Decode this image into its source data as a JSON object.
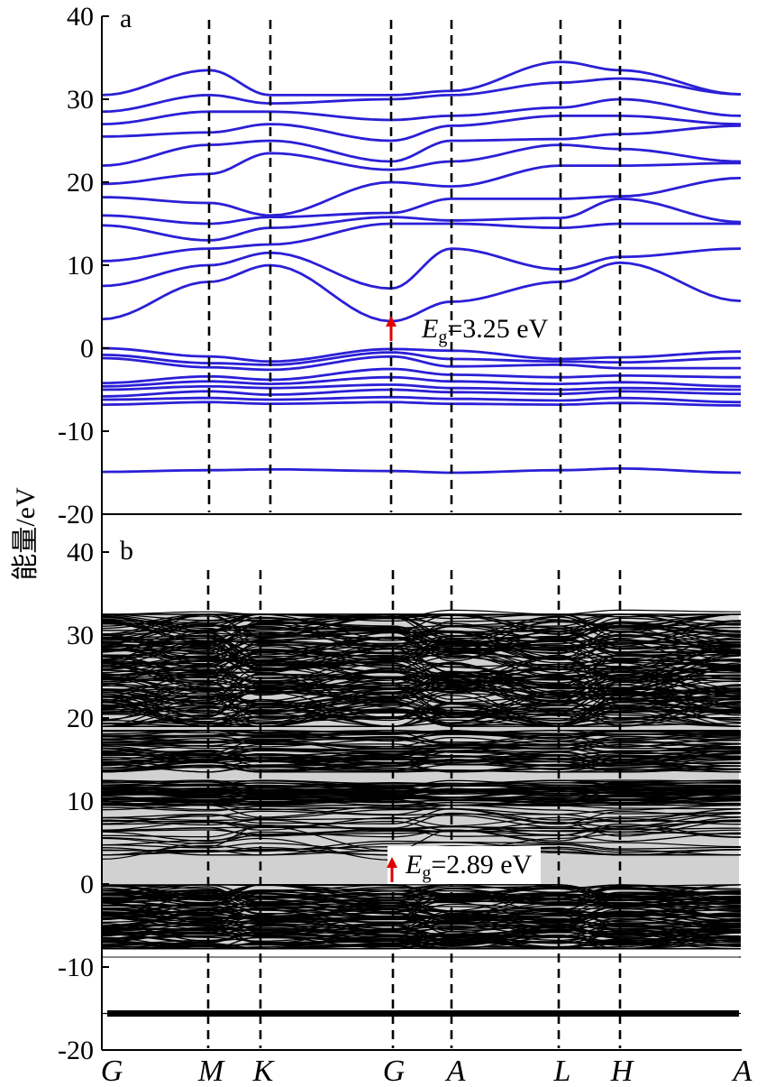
{
  "figure": {
    "ylabel": "能量/eV",
    "kpoints": [
      "G",
      "M",
      "K",
      "G",
      "A",
      "L",
      "H",
      "A"
    ]
  },
  "chart_data": [
    {
      "type": "line",
      "panel_label": "a",
      "ylim": [
        -20,
        40
      ],
      "yticks": [
        -20,
        -10,
        0,
        10,
        20,
        30,
        40
      ],
      "ytick_labels": [
        "-20",
        "-10",
        "0",
        "10",
        "20",
        "30",
        "40"
      ],
      "x_labels": [
        "G",
        "M",
        "K",
        "G",
        "A",
        "L",
        "H",
        "A"
      ],
      "line_color": "#2B1FD6",
      "band_gap_eV": 3.25,
      "annotation": {
        "E": "E",
        "sub": "g",
        "rest": "=3.25 eV"
      },
      "bands_sampled": [
        {
          "name": "",
          "values": [
            -14.9,
            -14.7,
            -14.6,
            -14.8,
            -15.0,
            -14.7,
            -14.5,
            -15.0
          ]
        },
        {
          "name": "",
          "values": [
            -6.8,
            -6.5,
            -6.7,
            -6.5,
            -6.7,
            -6.8,
            -6.6,
            -6.9
          ]
        },
        {
          "name": "",
          "values": [
            -6.2,
            -6.0,
            -6.2,
            -5.9,
            -6.1,
            -6.3,
            -6.0,
            -6.5
          ]
        },
        {
          "name": "",
          "values": [
            -5.8,
            -5.2,
            -5.6,
            -5.0,
            -5.3,
            -5.5,
            -5.2,
            -5.5
          ]
        },
        {
          "name": "",
          "values": [
            -5.0,
            -4.6,
            -4.8,
            -4.4,
            -4.8,
            -5.0,
            -4.8,
            -5.0
          ]
        },
        {
          "name": "",
          "values": [
            -4.6,
            -4.0,
            -4.3,
            -3.5,
            -4.0,
            -4.3,
            -4.1,
            -4.6
          ]
        },
        {
          "name": "",
          "values": [
            -4.2,
            -3.4,
            -3.8,
            -2.5,
            -3.2,
            -3.5,
            -3.3,
            -3.5
          ]
        },
        {
          "name": "",
          "values": [
            -1.2,
            -2.3,
            -2.6,
            -1.0,
            -2.2,
            -2.0,
            -2.4,
            -2.4
          ]
        },
        {
          "name": "",
          "values": [
            -0.8,
            -1.8,
            -2.0,
            -0.5,
            -1.3,
            -1.6,
            -1.7,
            -1.2
          ]
        },
        {
          "name": "",
          "values": [
            0.0,
            -1.0,
            -1.6,
            -0.1,
            -0.3,
            -1.3,
            -1.1,
            -0.4
          ]
        },
        {
          "name": "",
          "values": [
            3.5,
            8.0,
            10.0,
            3.25,
            5.6,
            8.0,
            10.3,
            5.7
          ]
        },
        {
          "name": "",
          "values": [
            7.5,
            10.0,
            11.5,
            7.2,
            12.0,
            9.5,
            11.0,
            12.0
          ]
        },
        {
          "name": "",
          "values": [
            10.5,
            12.0,
            12.5,
            15.0,
            15.0,
            14.5,
            15.0,
            15.0
          ]
        },
        {
          "name": "",
          "values": [
            14.8,
            13.0,
            14.5,
            15.8,
            15.4,
            15.7,
            18.0,
            15.2
          ]
        },
        {
          "name": "",
          "values": [
            16.0,
            15.0,
            15.8,
            16.3,
            18.0,
            18.0,
            18.3,
            20.5
          ]
        },
        {
          "name": "",
          "values": [
            18.2,
            17.5,
            16.0,
            20.0,
            19.5,
            22.0,
            22.0,
            22.3
          ]
        },
        {
          "name": "",
          "values": [
            19.8,
            21.0,
            23.5,
            21.5,
            22.5,
            24.5,
            24.0,
            22.5
          ]
        },
        {
          "name": "",
          "values": [
            22.0,
            24.5,
            25.0,
            22.5,
            25.0,
            25.2,
            25.8,
            26.8
          ]
        },
        {
          "name": "",
          "values": [
            25.5,
            26.0,
            27.0,
            25.0,
            26.8,
            28.0,
            28.0,
            27.0
          ]
        },
        {
          "name": "",
          "values": [
            27.0,
            28.5,
            28.5,
            27.5,
            28.0,
            29.0,
            30.0,
            28.0
          ]
        },
        {
          "name": "",
          "values": [
            28.5,
            30.5,
            29.5,
            30.0,
            30.5,
            32.0,
            32.5,
            30.6
          ]
        },
        {
          "name": "",
          "values": [
            30.5,
            33.5,
            30.5,
            30.5,
            31.0,
            34.5,
            33.5,
            30.6
          ]
        }
      ]
    },
    {
      "type": "line",
      "panel_label": "b",
      "ylim": [
        -20,
        40
      ],
      "yticks": [
        -20,
        -10,
        0,
        10,
        20,
        30,
        40
      ],
      "ytick_labels": [
        "-20",
        "-10",
        "0",
        "10",
        "20",
        "30",
        "40"
      ],
      "x_labels": [
        "G",
        "M",
        "K",
        "G",
        "A",
        "L",
        "H",
        "A"
      ],
      "line_color": "#000000",
      "band_gap_eV": 2.89,
      "annotation": {
        "E": "E",
        "sub": "g",
        "rest": "=2.89 eV"
      },
      "bands_sampled": [
        {
          "name": "",
          "values": [
            -15.6,
            -15.6,
            -15.6,
            -15.6,
            -15.6,
            -15.6,
            -15.6,
            -15.6
          ]
        },
        {
          "name": "",
          "values": [
            -8.8,
            -8.8,
            -8.8,
            -8.8,
            -8.8,
            -8.8,
            -8.8,
            -8.8
          ]
        },
        {
          "name": "",
          "values": [
            3.0,
            5.0,
            5.5,
            2.89,
            4.0,
            5.5,
            6.0,
            6.5
          ]
        },
        {
          "name": "",
          "values": [
            5.5,
            4.5,
            7.0,
            4.0,
            6.5,
            5.0,
            5.0,
            4.5
          ]
        },
        {
          "name": "",
          "values": [
            6.5,
            7.5,
            6.5,
            8.0,
            7.0,
            8.0,
            7.5,
            8.5
          ]
        },
        {
          "name": "",
          "values": [
            32.5,
            32.8,
            32.5,
            32.0,
            33.0,
            32.5,
            33.0,
            32.8
          ]
        }
      ]
    }
  ]
}
